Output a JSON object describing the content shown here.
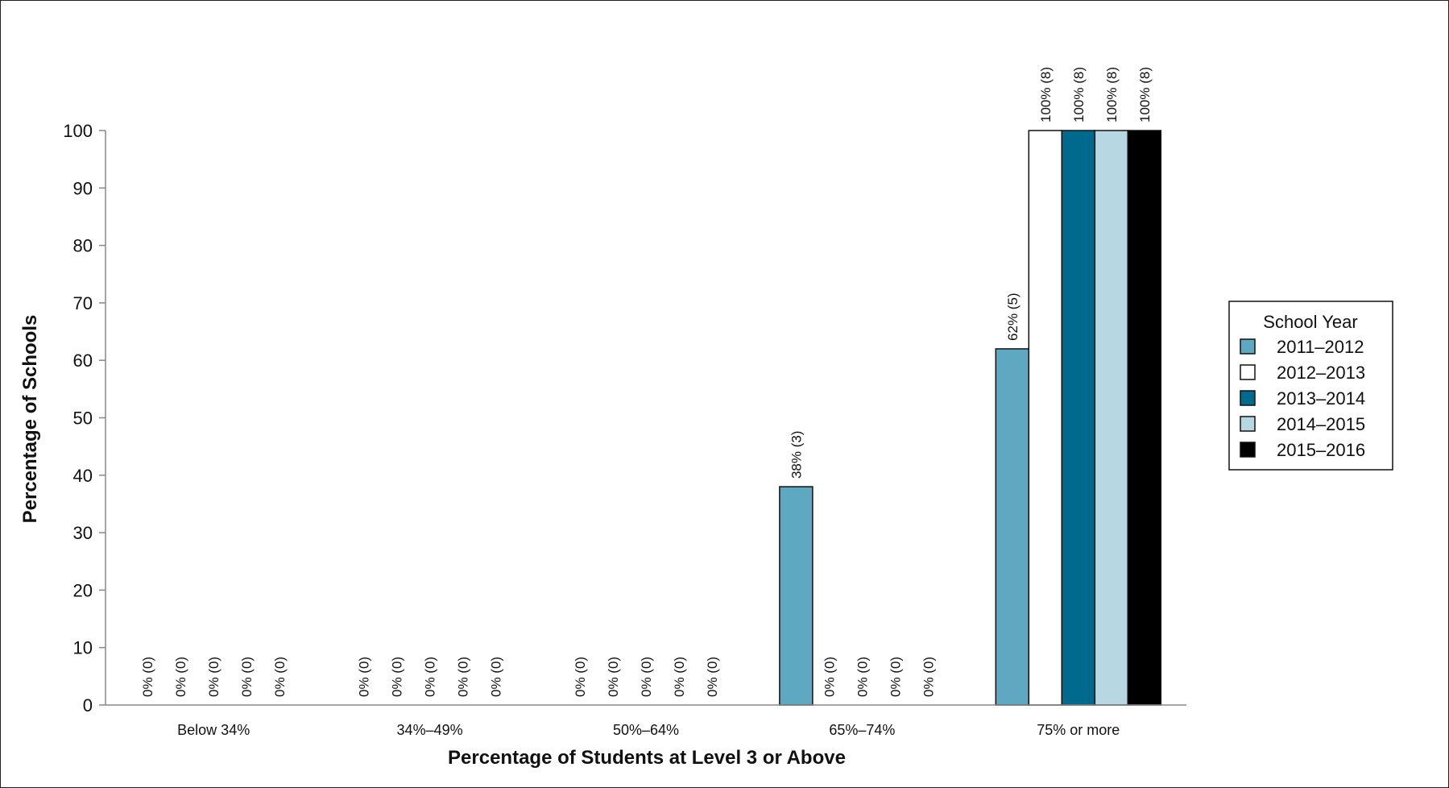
{
  "chart_data": {
    "type": "bar",
    "title": "",
    "xlabel": "Percentage of Students at Level 3 or Above",
    "ylabel": "Percentage of Schools",
    "ylim": [
      0,
      100
    ],
    "yticks": [
      0,
      10,
      20,
      30,
      40,
      50,
      60,
      70,
      80,
      90,
      100
    ],
    "grid": false,
    "legend_position": "right",
    "legend_title": "School Year",
    "categories": [
      "Below 34%",
      "34%–49%",
      "50%–64%",
      "65%–74%",
      "75% or more"
    ],
    "series": [
      {
        "name": "2011–2012",
        "color": "#5fa8c1",
        "values": [
          0,
          0,
          0,
          38,
          62
        ],
        "labels": [
          "0% (0)",
          "0% (0)",
          "0% (0)",
          "38% (3)",
          "62% (5)"
        ]
      },
      {
        "name": "2012–2013",
        "color": "#ffffff",
        "values": [
          0,
          0,
          0,
          0,
          100
        ],
        "labels": [
          "0% (0)",
          "0% (0)",
          "0% (0)",
          "0% (0)",
          "100% (8)"
        ]
      },
      {
        "name": "2013–2014",
        "color": "#006a8e",
        "values": [
          0,
          0,
          0,
          0,
          100
        ],
        "labels": [
          "0% (0)",
          "0% (0)",
          "0% (0)",
          "0% (0)",
          "100% (8)"
        ]
      },
      {
        "name": "2014–2015",
        "color": "#b7d7e2",
        "values": [
          0,
          0,
          0,
          0,
          100
        ],
        "labels": [
          "0% (0)",
          "0% (0)",
          "0% (0)",
          "0% (0)",
          "100% (8)"
        ]
      },
      {
        "name": "2015–2016",
        "color": "#000000",
        "values": [
          0,
          0,
          0,
          0,
          100
        ],
        "labels": [
          "0% (0)",
          "0% (0)",
          "0% (0)",
          "0% (0)",
          "100% (8)"
        ]
      }
    ]
  }
}
